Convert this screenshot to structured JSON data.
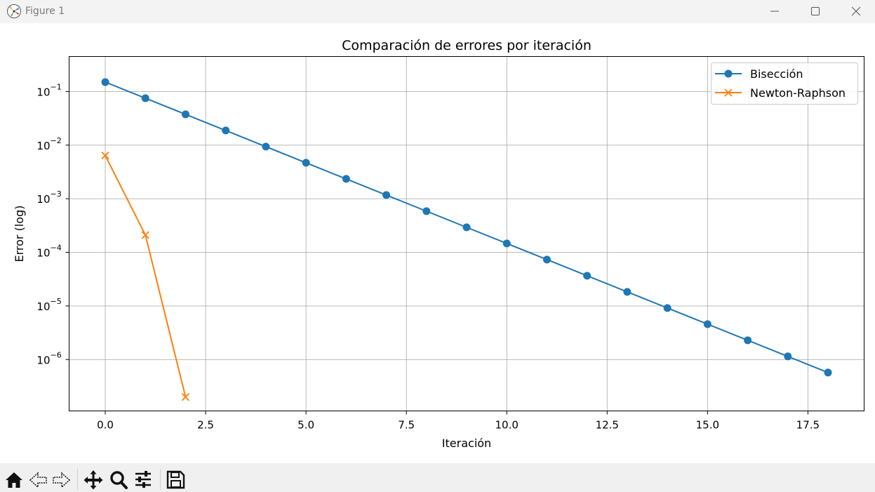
{
  "window": {
    "title": "Figure 1"
  },
  "toolbar": {
    "icons": [
      "home-icon",
      "back-icon",
      "forward-icon",
      "pan-icon",
      "zoom-icon",
      "configure-subplots-icon",
      "save-icon"
    ]
  },
  "colors": {
    "biseccion": "#1f77b4",
    "newton": "#ff7f0e",
    "grid": "#b0b0b0"
  },
  "chart_data": {
    "type": "line",
    "title": "Comparación de errores por iteración",
    "xlabel": "Iteración",
    "ylabel": "Error (log)",
    "xlim": [
      -0.9,
      18.9
    ],
    "ylim": [
      1.1e-07,
      0.45
    ],
    "yscale": "log",
    "grid": true,
    "legend_position": "top-right",
    "xticks": [
      0.0,
      2.5,
      5.0,
      7.5,
      10.0,
      12.5,
      15.0,
      17.5
    ],
    "xtick_labels": [
      "0.0",
      "2.5",
      "5.0",
      "7.5",
      "10.0",
      "12.5",
      "15.0",
      "17.5"
    ],
    "yticks": [
      {
        "value": 0.1,
        "base": "10",
        "exp": "−1"
      },
      {
        "value": 0.01,
        "base": "10",
        "exp": "−2"
      },
      {
        "value": 0.001,
        "base": "10",
        "exp": "−3"
      },
      {
        "value": 0.0001,
        "base": "10",
        "exp": "−4"
      },
      {
        "value": 1e-05,
        "base": "10",
        "exp": "−5"
      },
      {
        "value": 1e-06,
        "base": "10",
        "exp": "−6"
      }
    ],
    "series": [
      {
        "name": "Bisección",
        "marker": "o",
        "x": [
          0,
          1,
          2,
          3,
          4,
          5,
          6,
          7,
          8,
          9,
          10,
          11,
          12,
          13,
          14,
          15,
          16,
          17,
          18
        ],
        "y": [
          0.15,
          0.075,
          0.0375,
          0.01875,
          0.009375,
          0.0046875,
          0.00234375,
          0.001171875,
          0.0005859375,
          0.00029296875,
          0.000146484375,
          7.32421875e-05,
          3.662109375e-05,
          1.8310546875e-05,
          9.1552734375e-06,
          4.57763671875e-06,
          2.288818359375e-06,
          1.1444091796875e-06,
          5.7220458984375e-07
        ]
      },
      {
        "name": "Newton-Raphson",
        "marker": "x",
        "x": [
          0,
          1,
          2
        ],
        "y": [
          0.0064,
          0.00021,
          2e-07
        ]
      }
    ]
  }
}
